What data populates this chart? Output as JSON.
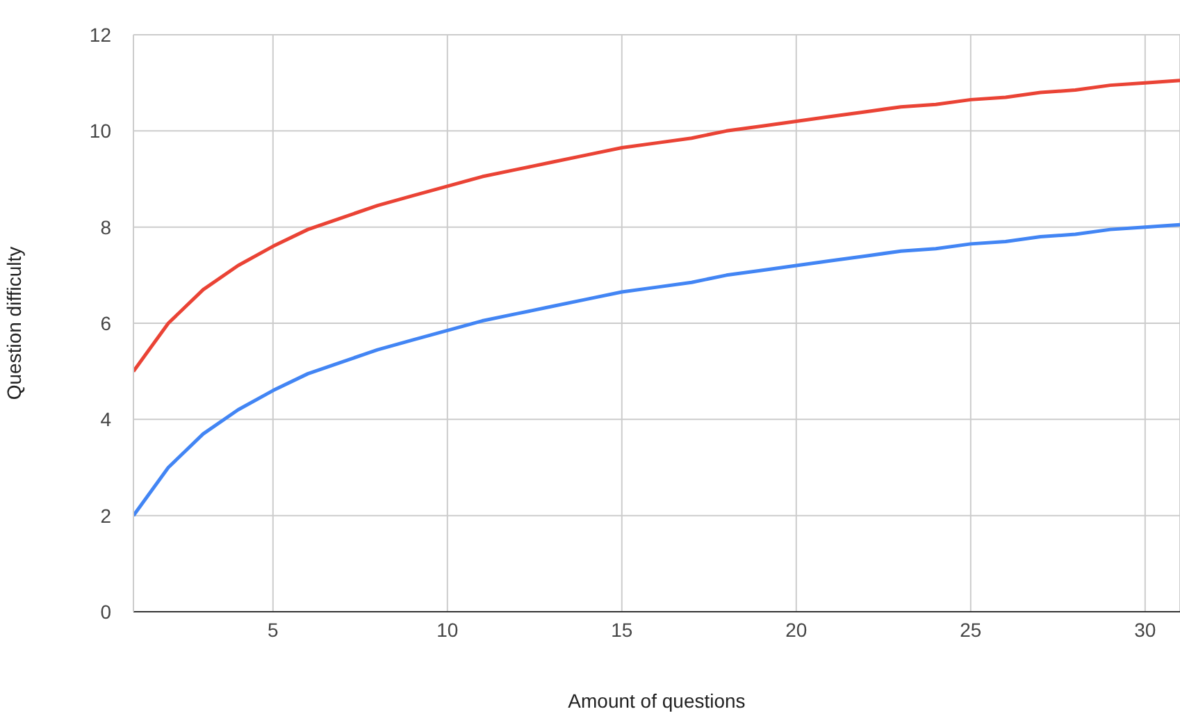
{
  "chart_data": {
    "type": "line",
    "xlabel": "Amount of questions",
    "ylabel": "Question difficulty",
    "x": [
      1,
      2,
      3,
      4,
      5,
      6,
      7,
      8,
      9,
      10,
      11,
      12,
      13,
      14,
      15,
      16,
      17,
      18,
      19,
      20,
      21,
      22,
      23,
      24,
      25,
      26,
      27,
      28,
      29,
      30,
      31
    ],
    "series": [
      {
        "color": "#4285f4",
        "values": [
          2,
          3,
          3.7,
          4.2,
          4.6,
          4.95,
          5.2,
          5.45,
          5.65,
          5.85,
          6.05,
          6.2,
          6.35,
          6.5,
          6.65,
          6.75,
          6.85,
          7,
          7.1,
          7.2,
          7.3,
          7.4,
          7.5,
          7.55,
          7.65,
          7.7,
          7.8,
          7.85,
          7.95,
          8,
          8.05
        ]
      },
      {
        "color": "#ea4335",
        "values": [
          5,
          6,
          6.7,
          7.2,
          7.6,
          7.95,
          8.2,
          8.45,
          8.65,
          8.85,
          9.05,
          9.2,
          9.35,
          9.5,
          9.65,
          9.75,
          9.85,
          10,
          10.1,
          10.2,
          10.3,
          10.4,
          10.5,
          10.55,
          10.65,
          10.7,
          10.8,
          10.85,
          10.95,
          11,
          11.05
        ]
      }
    ],
    "xlim": [
      1,
      31
    ],
    "xticks": [
      5,
      10,
      15,
      20,
      25,
      30
    ],
    "ylim": [
      0,
      12
    ],
    "yticks": [
      0,
      2,
      4,
      6,
      8,
      10,
      12
    ],
    "grid": true,
    "marker": "none",
    "line_style": "solid",
    "legend": false
  }
}
